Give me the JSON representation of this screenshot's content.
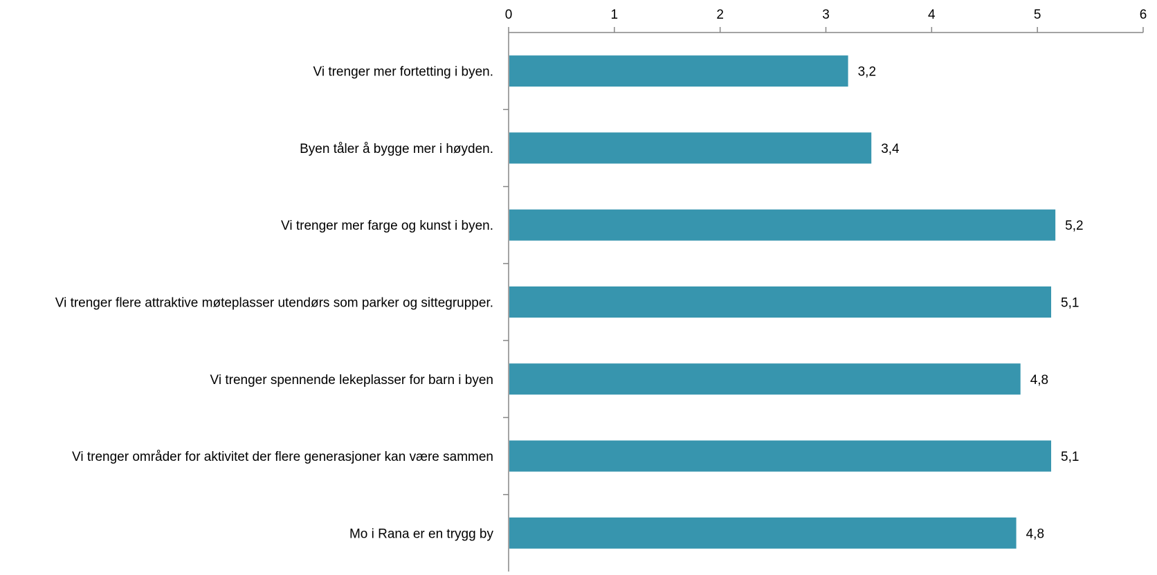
{
  "chart_data": {
    "type": "bar",
    "orientation": "horizontal",
    "title": "",
    "xlabel": "",
    "ylabel": "",
    "xlim": [
      0,
      6
    ],
    "x_ticks": [
      0,
      1,
      2,
      3,
      4,
      5,
      6
    ],
    "x_tick_labels": [
      "0",
      "1",
      "2",
      "3",
      "4",
      "5",
      "6"
    ],
    "x_axis_position": "top",
    "grid": false,
    "legend": "none",
    "bar_color": "#3795ae",
    "categories": [
      "Vi trenger mer fortetting i byen.",
      "Byen tåler å bygge mer i høyden.",
      "Vi trenger mer farge og kunst i byen.",
      "Vi trenger flere attraktive møteplasser utendørs som parker og sittegrupper.",
      "Vi trenger spennende lekeplasser for barn i byen",
      "Vi trenger områder for aktivitet der flere generasjoner kan være sammen",
      "Mo i Rana er en trygg by"
    ],
    "values": [
      3.21,
      3.43,
      5.17,
      5.13,
      4.84,
      5.13,
      4.8
    ],
    "data_labels": [
      "3,2",
      "3,4",
      "5,2",
      "5,1",
      "4,8",
      "5,1",
      "4,8"
    ]
  }
}
